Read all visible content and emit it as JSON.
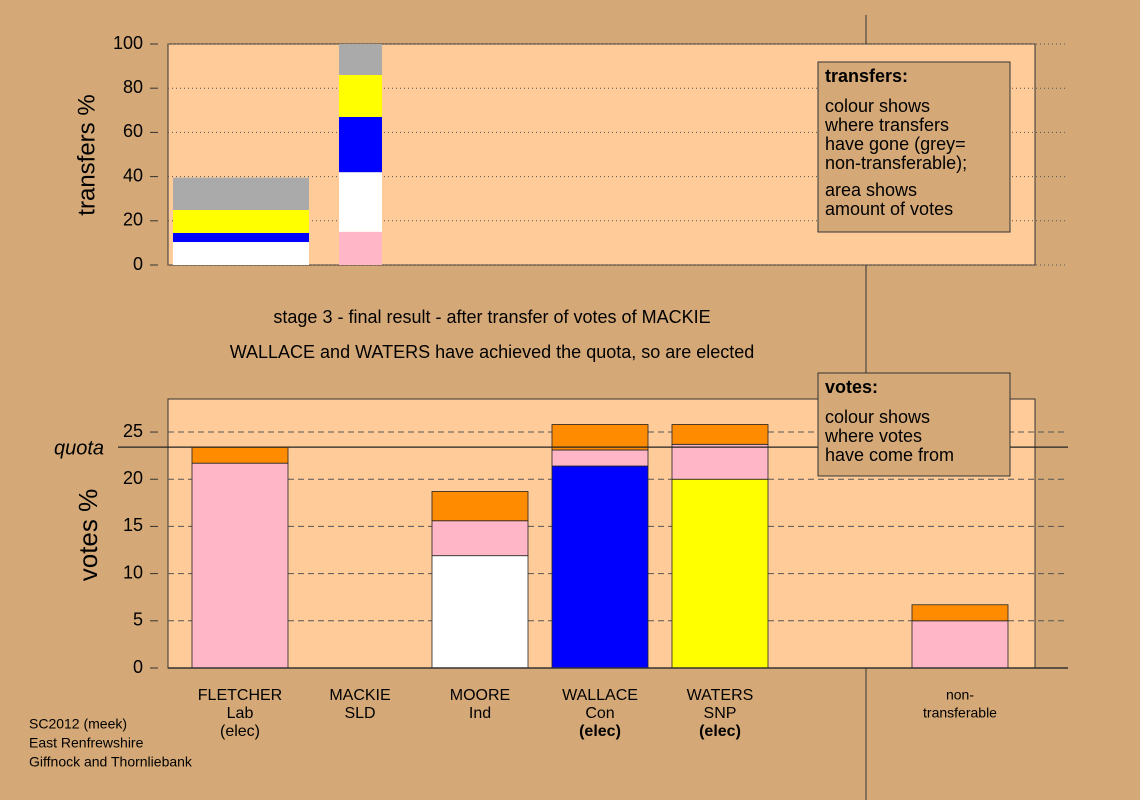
{
  "chart_data": [
    {
      "type": "bar",
      "stacked": true,
      "ylabel": "transfers %",
      "ylim": [
        0,
        100
      ],
      "yticks": [
        0,
        20,
        40,
        60,
        80,
        100
      ],
      "grid": true,
      "series": [
        {
          "color": "#ffb6c6",
          "values": [
            0,
            15
          ]
        },
        {
          "color": "#ffffff",
          "values": [
            10.4,
            27
          ]
        },
        {
          "color": "#0000ff",
          "values": [
            4.1,
            25
          ]
        },
        {
          "color": "#ffff00",
          "values": [
            10.4,
            19
          ]
        },
        {
          "color": "#aaaaaa",
          "values": [
            14.6,
            14
          ]
        }
      ],
      "key": {
        "title": "transfers:",
        "paragraphs": [
          [
            "colour shows",
            "where transfers",
            "have gone (grey=",
            "non-transferable);"
          ],
          [
            "area shows",
            "amount of votes"
          ]
        ]
      }
    },
    {
      "type": "bar",
      "stacked": true,
      "ylabel": "votes %",
      "ylim": [
        0,
        28.5
      ],
      "yticks": [
        0,
        5,
        10,
        15,
        20,
        25
      ],
      "grid": true,
      "quota": {
        "value": 23.4,
        "label": "quota"
      },
      "categories": [
        [
          "FLETCHER",
          "Lab",
          "(elec)"
        ],
        [
          "MACKIE",
          "SLD"
        ],
        [
          "MOORE",
          "Ind"
        ],
        [
          "WALLACE",
          "Con",
          "(elec)"
        ],
        [
          "WATERS",
          "SNP",
          "(elec)"
        ],
        null,
        [
          "non-",
          "transferable"
        ]
      ],
      "series": [
        {
          "color": "#ffffff",
          "values": [
            0,
            0,
            11.9,
            0,
            0,
            null,
            0
          ]
        },
        {
          "color": "#0000ff",
          "values": [
            0,
            0,
            0,
            21.4,
            0,
            null,
            0
          ]
        },
        {
          "color": "#ffff00",
          "values": [
            0,
            0,
            0,
            0,
            20.0,
            null,
            0
          ]
        },
        {
          "color": "#ffb6c6",
          "values": [
            21.7,
            0,
            3.7,
            1.7,
            3.7,
            null,
            5.0
          ]
        },
        {
          "color": "#ff8c00",
          "values": [
            1.7,
            0,
            3.1,
            2.7,
            2.1,
            null,
            1.7
          ]
        }
      ],
      "key": {
        "title": "votes:",
        "paragraphs": [
          [
            "colour shows",
            "where votes",
            "have come from"
          ]
        ]
      }
    }
  ],
  "headline": [
    "stage 3 - final result - after transfer of votes of MACKIE",
    "WALLACE and WATERS have achieved the quota, so are elected"
  ],
  "footer": [
    "SC2012 (meek)",
    "East Renfrewshire",
    "Giffnock and Thornliebank"
  ]
}
